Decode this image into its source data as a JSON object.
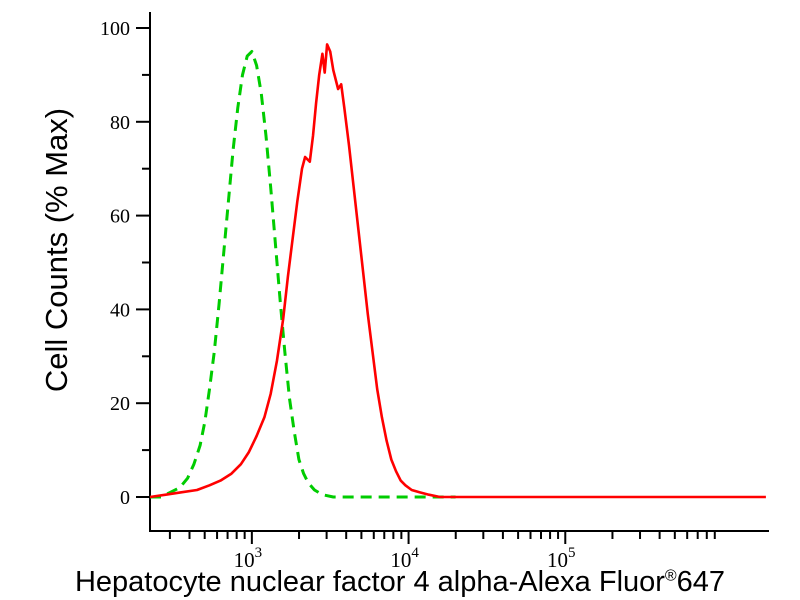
{
  "chart_data": {
    "type": "line",
    "title": "",
    "ylabel": "Cell Counts (% Max)",
    "xlabel": "Hepatocyte nuclear factor 4 alpha-Alexa Fluor®647",
    "xlabel_parts": {
      "main": "Hepatocyte nuclear factor 4 alpha-Alexa Fluor",
      "sup": "®",
      "suffix": "647"
    },
    "x_scale": "log",
    "x_range_log10": [
      2.35,
      6.3
    ],
    "ylim": [
      0,
      100
    ],
    "grid": false,
    "legend": "none",
    "axis_color": "#000000",
    "y_ticks": [
      0,
      20,
      40,
      60,
      80,
      100
    ],
    "y_minor_ticks": [
      10,
      30,
      50,
      70,
      90
    ],
    "x_major_ticks": [
      {
        "log10": 3,
        "base": "10",
        "exp": "3"
      },
      {
        "log10": 4,
        "base": "10",
        "exp": "4"
      },
      {
        "log10": 5,
        "base": "10",
        "exp": "5"
      }
    ],
    "x_minor_ticks_log10": [
      2.477,
      2.602,
      2.699,
      2.778,
      2.845,
      2.903,
      2.954,
      3.301,
      3.477,
      3.602,
      3.699,
      3.778,
      3.845,
      3.903,
      3.954,
      4.301,
      4.477,
      4.602,
      4.699,
      4.778,
      4.845,
      4.903,
      4.954,
      5.301,
      5.477,
      5.602,
      5.699,
      5.778,
      5.845,
      5.903,
      5.954
    ],
    "series": [
      {
        "name": "green-dashed",
        "color": "#00cc00",
        "style": "dashed",
        "dash": "11 7",
        "width": 3,
        "peak_log10x": 3.0,
        "peak_y": 95,
        "points": [
          [
            2.35,
            0
          ],
          [
            2.42,
            0
          ],
          [
            2.48,
            1
          ],
          [
            2.54,
            2
          ],
          [
            2.59,
            4
          ],
          [
            2.63,
            7
          ],
          [
            2.67,
            11
          ],
          [
            2.7,
            16
          ],
          [
            2.73,
            23
          ],
          [
            2.76,
            31
          ],
          [
            2.79,
            41
          ],
          [
            2.82,
            52
          ],
          [
            2.85,
            63
          ],
          [
            2.88,
            74
          ],
          [
            2.91,
            83
          ],
          [
            2.94,
            90
          ],
          [
            2.97,
            94
          ],
          [
            3.0,
            95
          ],
          [
            3.03,
            92
          ],
          [
            3.06,
            86
          ],
          [
            3.09,
            77
          ],
          [
            3.12,
            66
          ],
          [
            3.15,
            54
          ],
          [
            3.18,
            42
          ],
          [
            3.21,
            31
          ],
          [
            3.24,
            21
          ],
          [
            3.27,
            14
          ],
          [
            3.3,
            8
          ],
          [
            3.33,
            5
          ],
          [
            3.36,
            3
          ],
          [
            3.4,
            1.5
          ],
          [
            3.45,
            0.5
          ],
          [
            3.52,
            0
          ],
          [
            3.7,
            0
          ],
          [
            3.9,
            0
          ],
          [
            4.1,
            0
          ],
          [
            4.3,
            0
          ]
        ]
      },
      {
        "name": "red-solid",
        "color": "#ff0000",
        "style": "solid",
        "dash": "",
        "width": 2.6,
        "peak_log10x": 3.48,
        "peak_y": 96.5,
        "points": [
          [
            2.35,
            0
          ],
          [
            2.45,
            0.5
          ],
          [
            2.55,
            1
          ],
          [
            2.65,
            1.5
          ],
          [
            2.73,
            2.5
          ],
          [
            2.8,
            3.5
          ],
          [
            2.87,
            5
          ],
          [
            2.93,
            7
          ],
          [
            2.98,
            9.5
          ],
          [
            3.03,
            13
          ],
          [
            3.08,
            17
          ],
          [
            3.12,
            22
          ],
          [
            3.16,
            29
          ],
          [
            3.2,
            38
          ],
          [
            3.23,
            47
          ],
          [
            3.26,
            55
          ],
          [
            3.29,
            63
          ],
          [
            3.32,
            70
          ],
          [
            3.34,
            72.5
          ],
          [
            3.37,
            71.5
          ],
          [
            3.39,
            77
          ],
          [
            3.41,
            84
          ],
          [
            3.43,
            90
          ],
          [
            3.45,
            94.5
          ],
          [
            3.465,
            90.5
          ],
          [
            3.48,
            96.5
          ],
          [
            3.5,
            95
          ],
          [
            3.52,
            91
          ],
          [
            3.55,
            87
          ],
          [
            3.57,
            88
          ],
          [
            3.59,
            83
          ],
          [
            3.62,
            75
          ],
          [
            3.65,
            66
          ],
          [
            3.68,
            57
          ],
          [
            3.71,
            48
          ],
          [
            3.74,
            39
          ],
          [
            3.77,
            31
          ],
          [
            3.8,
            23
          ],
          [
            3.83,
            17
          ],
          [
            3.86,
            12
          ],
          [
            3.89,
            8
          ],
          [
            3.92,
            5.5
          ],
          [
            3.95,
            3.5
          ],
          [
            3.98,
            2.5
          ],
          [
            4.02,
            1.5
          ],
          [
            4.07,
            1
          ],
          [
            4.13,
            0.5
          ],
          [
            4.2,
            0
          ],
          [
            4.5,
            0
          ],
          [
            5.0,
            0
          ],
          [
            5.5,
            0
          ],
          [
            6.0,
            0
          ],
          [
            6.28,
            0
          ]
        ]
      }
    ]
  }
}
